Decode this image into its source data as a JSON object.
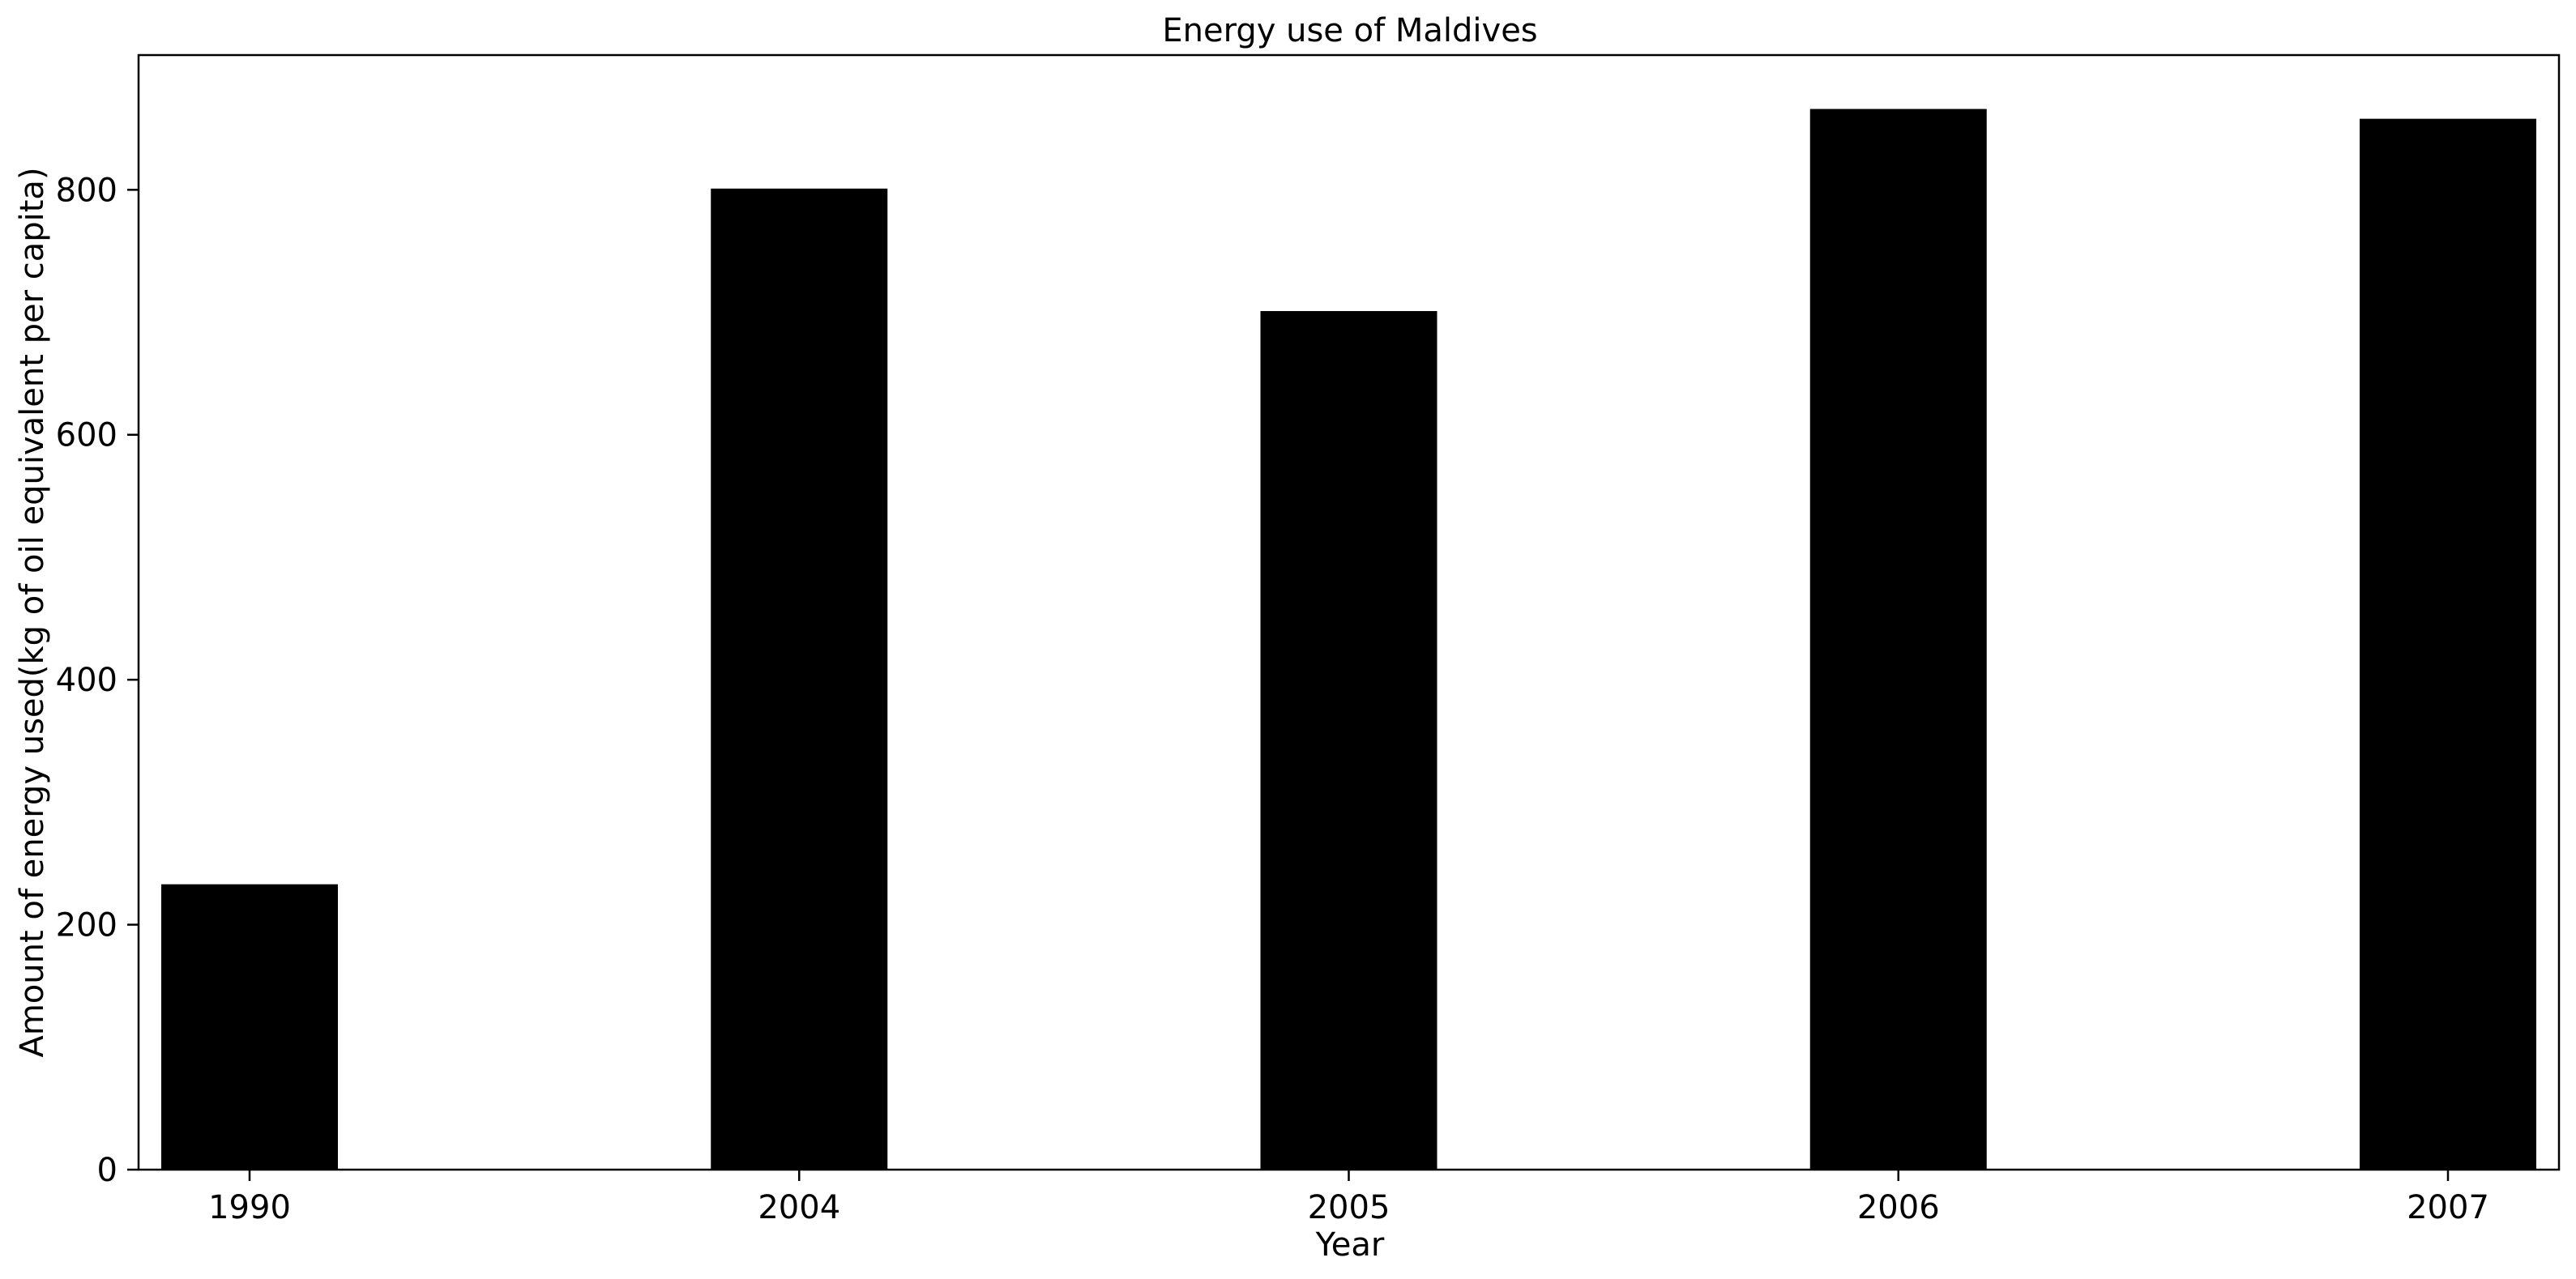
{
  "chart_data": {
    "type": "bar",
    "title": "Energy use of Maldives",
    "xlabel": "Year",
    "ylabel": "Amount of energy used(kg of oil equivalent per capita)",
    "categories": [
      "1990",
      "2004",
      "2005",
      "2006",
      "2007"
    ],
    "values": [
      233,
      801,
      701,
      866,
      858
    ],
    "ylim": [
      0,
      910
    ],
    "yticks": [
      0,
      200,
      400,
      600,
      800
    ],
    "grid": false,
    "legend": "none",
    "bar_color": "#000000"
  }
}
